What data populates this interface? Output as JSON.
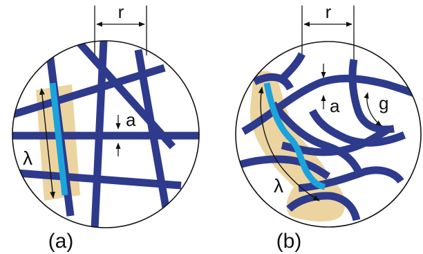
{
  "colors": {
    "fiber": "#2e3a8c",
    "highlight_fiber": "#1ba3dc",
    "highlight_region": "#ecd4a0",
    "outline": "#111111",
    "background": "#ffffff"
  },
  "panel_a": {
    "label": "(a)",
    "spacing_label": "r",
    "thickness_label": "a",
    "persistence_label": "λ"
  },
  "panel_b": {
    "label": "(b)",
    "spacing_label": "r",
    "thickness_label": "a",
    "gap_label": "g",
    "persistence_label": "λ"
  }
}
